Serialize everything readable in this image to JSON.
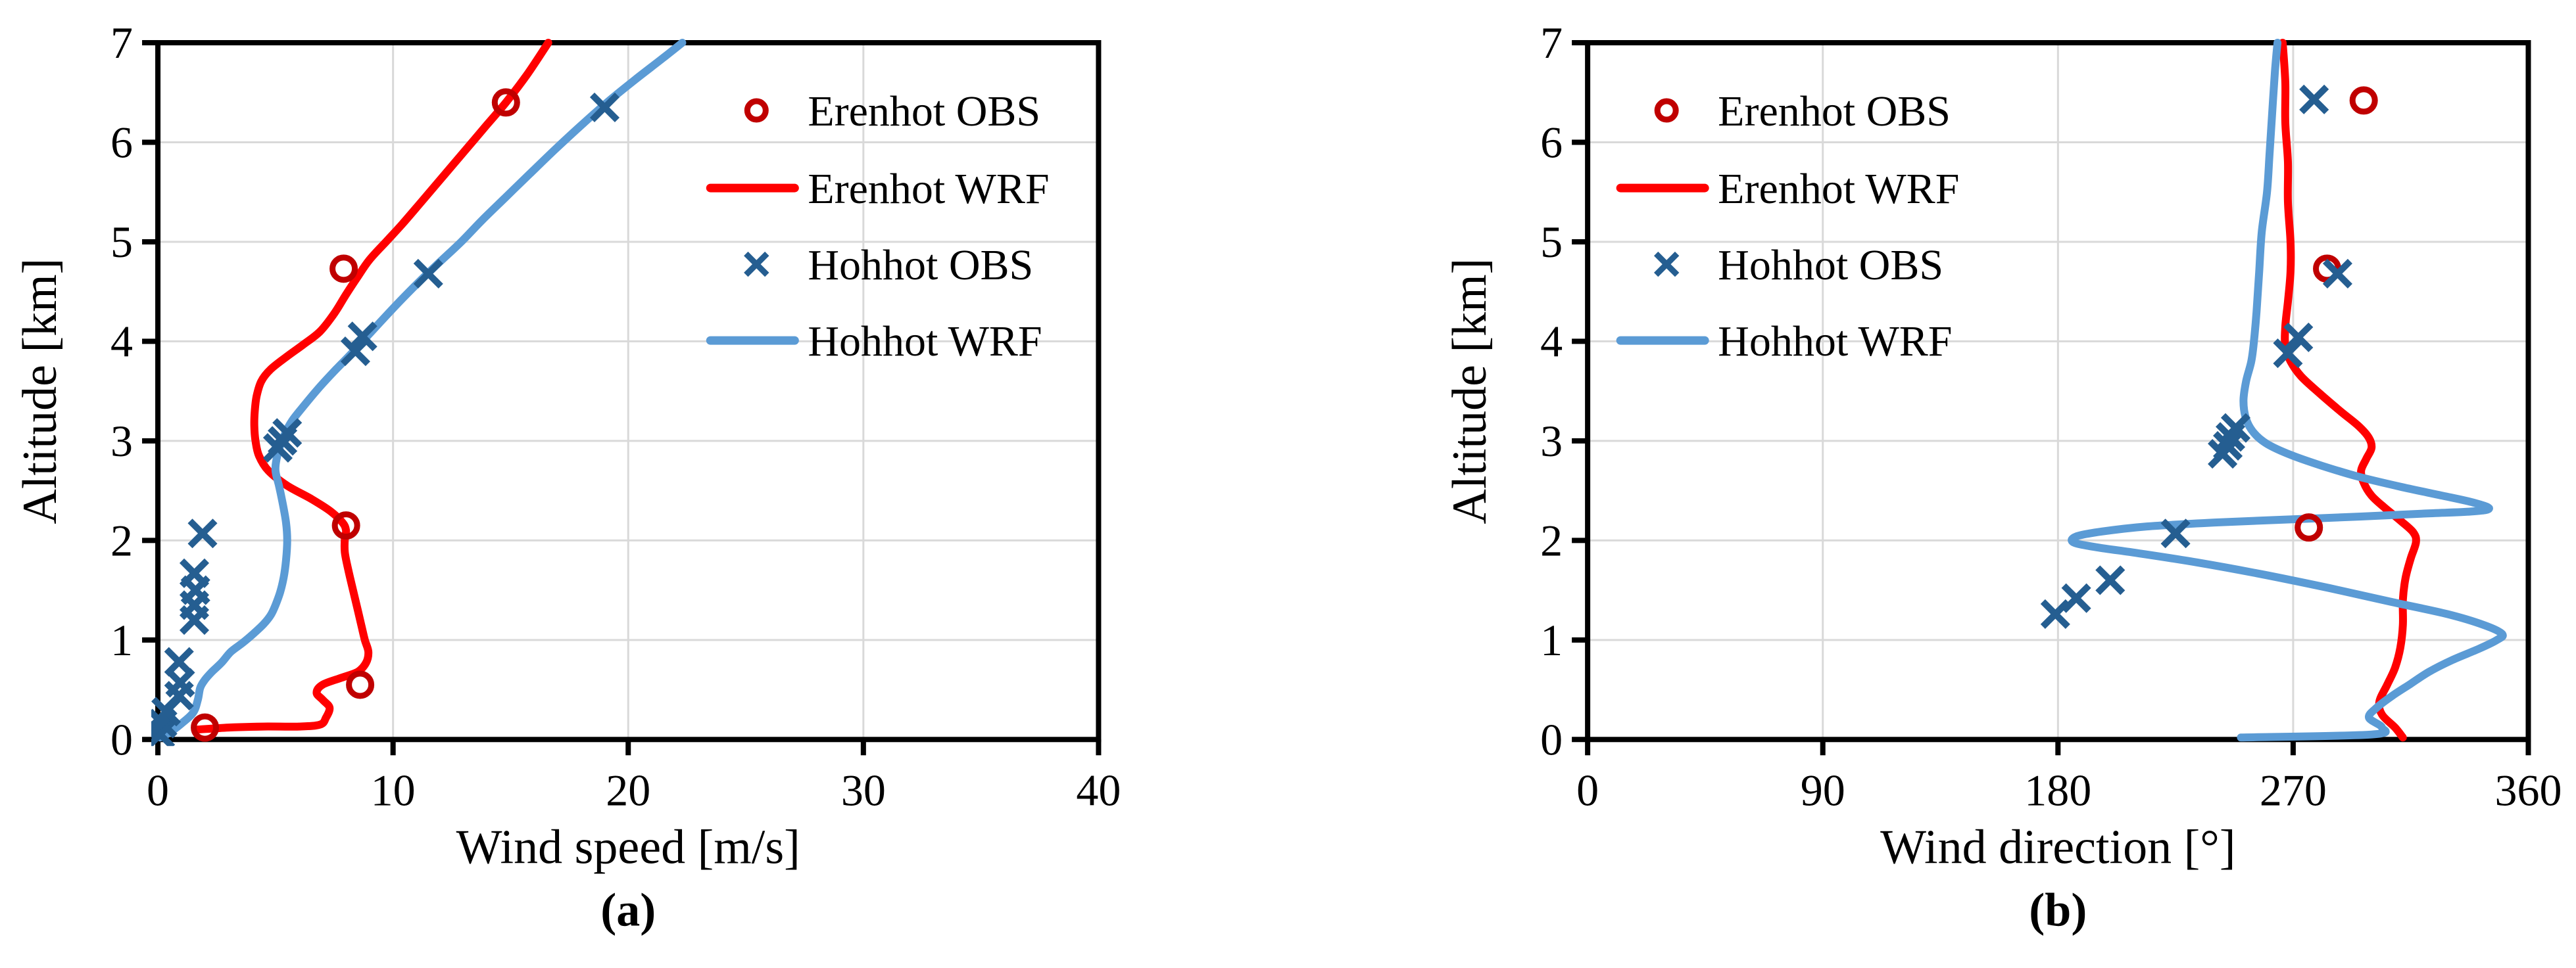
{
  "figure": {
    "colors": {
      "background": "#ffffff",
      "grid": "#d9d9d9",
      "axis": "#000000",
      "text": "#000000",
      "erenhot_obs": "#c00000",
      "erenhot_wrf": "#ff0000",
      "hohhot_obs": "#255e91",
      "hohhot_wrf": "#5b9bd5"
    },
    "legend_labels": [
      "Erenhot OBS",
      "Erenhot WRF",
      "Hohhot OBS",
      "Hohhot WRF"
    ]
  },
  "chart_data": [
    {
      "id": "a",
      "type": "line",
      "caption": "(a)",
      "xlabel": "Wind speed [m/s]",
      "ylabel": "Altitude [km]",
      "xlim": [
        0,
        40
      ],
      "ylim": [
        0,
        7
      ],
      "xticks": [
        0,
        10,
        20,
        30,
        40
      ],
      "yticks": [
        0,
        1,
        2,
        3,
        4,
        5,
        6,
        7
      ],
      "grid": true,
      "legend_position": "inside-top-right",
      "series": [
        {
          "name": "Erenhot OBS",
          "kind": "scatter",
          "marker": "open-circle",
          "color_key": "erenhot_obs",
          "points": [
            [
              2.0,
              0.12
            ],
            [
              8.6,
              0.55
            ],
            [
              8.0,
              2.15
            ],
            [
              7.9,
              4.73
            ],
            [
              14.8,
              6.4
            ]
          ]
        },
        {
          "name": "Erenhot WRF",
          "kind": "line",
          "color_key": "erenhot_wrf",
          "points": [
            [
              1.7,
              0.1
            ],
            [
              3.0,
              0.12
            ],
            [
              4.5,
              0.13
            ],
            [
              6.0,
              0.13
            ],
            [
              6.9,
              0.15
            ],
            [
              7.15,
              0.22
            ],
            [
              7.3,
              0.32
            ],
            [
              7.0,
              0.4
            ],
            [
              6.75,
              0.47
            ],
            [
              7.0,
              0.55
            ],
            [
              7.8,
              0.62
            ],
            [
              8.5,
              0.68
            ],
            [
              8.85,
              0.77
            ],
            [
              8.95,
              0.88
            ],
            [
              8.8,
              1.0
            ],
            [
              8.65,
              1.15
            ],
            [
              8.5,
              1.3
            ],
            [
              8.3,
              1.5
            ],
            [
              8.1,
              1.7
            ],
            [
              7.95,
              1.88
            ],
            [
              7.95,
              2.02
            ],
            [
              8.0,
              2.1
            ],
            [
              7.85,
              2.18
            ],
            [
              7.3,
              2.3
            ],
            [
              6.5,
              2.42
            ],
            [
              5.5,
              2.55
            ],
            [
              4.7,
              2.7
            ],
            [
              4.3,
              2.85
            ],
            [
              4.15,
              3.0
            ],
            [
              4.1,
              3.15
            ],
            [
              4.12,
              3.3
            ],
            [
              4.2,
              3.45
            ],
            [
              4.4,
              3.6
            ],
            [
              4.8,
              3.72
            ],
            [
              5.5,
              3.85
            ],
            [
              6.2,
              3.97
            ],
            [
              6.9,
              4.1
            ],
            [
              7.5,
              4.28
            ],
            [
              8.0,
              4.47
            ],
            [
              8.5,
              4.65
            ],
            [
              9.0,
              4.82
            ],
            [
              9.7,
              5.0
            ],
            [
              10.4,
              5.18
            ],
            [
              11.2,
              5.4
            ],
            [
              12.1,
              5.65
            ],
            [
              13.0,
              5.9
            ],
            [
              13.9,
              6.15
            ],
            [
              14.8,
              6.4
            ],
            [
              15.7,
              6.68
            ],
            [
              16.6,
              7.0
            ]
          ]
        },
        {
          "name": "Hohhot OBS",
          "kind": "scatter",
          "marker": "x",
          "color_key": "hohhot_obs",
          "points": [
            [
              0.1,
              0.05
            ],
            [
              0.2,
              0.16
            ],
            [
              0.35,
              0.28
            ],
            [
              0.9,
              0.44
            ],
            [
              0.95,
              0.57
            ],
            [
              0.9,
              0.78
            ],
            [
              1.55,
              1.2
            ],
            [
              1.55,
              1.35
            ],
            [
              1.6,
              1.5
            ],
            [
              1.55,
              1.67
            ],
            [
              1.9,
              2.07
            ],
            [
              5.1,
              2.93
            ],
            [
              5.3,
              3.0
            ],
            [
              5.5,
              3.08
            ],
            [
              8.4,
              3.9
            ],
            [
              8.7,
              4.05
            ],
            [
              11.5,
              4.68
            ],
            [
              19.0,
              6.35
            ]
          ]
        },
        {
          "name": "Hohhot WRF",
          "kind": "line",
          "color_key": "hohhot_wrf",
          "points": [
            [
              0.1,
              0.02
            ],
            [
              0.5,
              0.07
            ],
            [
              1.0,
              0.16
            ],
            [
              1.5,
              0.27
            ],
            [
              1.7,
              0.4
            ],
            [
              1.8,
              0.52
            ],
            [
              2.0,
              0.6
            ],
            [
              2.3,
              0.68
            ],
            [
              2.7,
              0.77
            ],
            [
              3.1,
              0.88
            ],
            [
              3.6,
              0.97
            ],
            [
              4.05,
              1.06
            ],
            [
              4.5,
              1.16
            ],
            [
              4.8,
              1.25
            ],
            [
              5.0,
              1.35
            ],
            [
              5.2,
              1.48
            ],
            [
              5.35,
              1.63
            ],
            [
              5.45,
              1.8
            ],
            [
              5.5,
              2.0
            ],
            [
              5.45,
              2.18
            ],
            [
              5.3,
              2.38
            ],
            [
              5.15,
              2.55
            ],
            [
              5.0,
              2.7
            ],
            [
              5.05,
              2.82
            ],
            [
              5.2,
              2.95
            ],
            [
              5.4,
              3.07
            ],
            [
              5.7,
              3.2
            ],
            [
              6.2,
              3.35
            ],
            [
              6.8,
              3.52
            ],
            [
              7.5,
              3.7
            ],
            [
              8.2,
              3.87
            ],
            [
              8.9,
              4.05
            ],
            [
              9.6,
              4.23
            ],
            [
              10.4,
              4.43
            ],
            [
              11.2,
              4.62
            ],
            [
              12.0,
              4.8
            ],
            [
              12.9,
              5.0
            ],
            [
              13.8,
              5.22
            ],
            [
              14.8,
              5.45
            ],
            [
              15.8,
              5.68
            ],
            [
              16.9,
              5.93
            ],
            [
              18.0,
              6.17
            ],
            [
              19.1,
              6.4
            ],
            [
              20.3,
              6.63
            ],
            [
              21.5,
              6.85
            ],
            [
              22.3,
              7.0
            ]
          ]
        }
      ]
    },
    {
      "id": "b",
      "type": "line",
      "caption": "(b)",
      "xlabel": "Wind direction [°]",
      "ylabel": "Altitude [km]",
      "xlim": [
        0,
        360
      ],
      "ylim": [
        0,
        7
      ],
      "xticks": [
        0,
        90,
        180,
        270,
        360
      ],
      "yticks": [
        0,
        1,
        2,
        3,
        4,
        5,
        6,
        7
      ],
      "grid": true,
      "legend_position": "inside-top-left",
      "series": [
        {
          "name": "Erenhot OBS",
          "kind": "scatter",
          "marker": "open-circle",
          "color_key": "erenhot_obs",
          "points": [
            [
              276,
              2.13
            ],
            [
              283,
              4.73
            ],
            [
              297,
              6.42
            ]
          ]
        },
        {
          "name": "Erenhot WRF",
          "kind": "line",
          "color_key": "erenhot_wrf",
          "points": [
            [
              312,
              0.02
            ],
            [
              309,
              0.12
            ],
            [
              304,
              0.25
            ],
            [
              303,
              0.38
            ],
            [
              306,
              0.55
            ],
            [
              309,
              0.72
            ],
            [
              311,
              0.92
            ],
            [
              312,
              1.15
            ],
            [
              312,
              1.4
            ],
            [
              313,
              1.62
            ],
            [
              315,
              1.82
            ],
            [
              317,
              1.98
            ],
            [
              316,
              2.08
            ],
            [
              311,
              2.2
            ],
            [
              305,
              2.33
            ],
            [
              300,
              2.45
            ],
            [
              297,
              2.58
            ],
            [
              296,
              2.7
            ],
            [
              298,
              2.82
            ],
            [
              300,
              2.93
            ],
            [
              299,
              3.03
            ],
            [
              295,
              3.15
            ],
            [
              288,
              3.3
            ],
            [
              280,
              3.48
            ],
            [
              273,
              3.65
            ],
            [
              269,
              3.8
            ],
            [
              267,
              3.95
            ],
            [
              267,
              4.15
            ],
            [
              268,
              4.4
            ],
            [
              269,
              4.7
            ],
            [
              269,
              5.0
            ],
            [
              268,
              5.4
            ],
            [
              268,
              5.8
            ],
            [
              267,
              6.2
            ],
            [
              267,
              6.6
            ],
            [
              266,
              7.0
            ]
          ]
        },
        {
          "name": "Hohhot OBS",
          "kind": "scatter",
          "marker": "x",
          "color_key": "hohhot_obs",
          "points": [
            [
              179,
              1.26
            ],
            [
              187,
              1.42
            ],
            [
              200,
              1.6
            ],
            [
              225,
              2.07
            ],
            [
              243,
              2.87
            ],
            [
              245,
              2.95
            ],
            [
              246,
              3.04
            ],
            [
              248,
              3.13
            ],
            [
              268,
              3.88
            ],
            [
              272,
              4.04
            ],
            [
              287,
              4.68
            ],
            [
              278,
              6.43
            ]
          ]
        },
        {
          "name": "Hohhot WRF",
          "kind": "line",
          "color_key": "hohhot_wrf",
          "points": [
            [
              250,
              0.02
            ],
            [
              300,
              0.05
            ],
            [
              304,
              0.12
            ],
            [
              299,
              0.22
            ],
            [
              302,
              0.32
            ],
            [
              308,
              0.44
            ],
            [
              315,
              0.56
            ],
            [
              322,
              0.68
            ],
            [
              331,
              0.8
            ],
            [
              341,
              0.91
            ],
            [
              348,
              1.0
            ],
            [
              350,
              1.06
            ],
            [
              343,
              1.15
            ],
            [
              329,
              1.26
            ],
            [
              308,
              1.38
            ],
            [
              284,
              1.52
            ],
            [
              258,
              1.66
            ],
            [
              233,
              1.78
            ],
            [
              211,
              1.87
            ],
            [
              195,
              1.93
            ],
            [
              186,
              1.98
            ],
            [
              187,
              2.04
            ],
            [
              197,
              2.09
            ],
            [
              214,
              2.14
            ],
            [
              240,
              2.18
            ],
            [
              268,
              2.21
            ],
            [
              296,
              2.24
            ],
            [
              320,
              2.27
            ],
            [
              338,
              2.29
            ],
            [
              345,
              2.32
            ],
            [
              339,
              2.38
            ],
            [
              327,
              2.45
            ],
            [
              311,
              2.54
            ],
            [
              295,
              2.64
            ],
            [
              281,
              2.75
            ],
            [
              269,
              2.86
            ],
            [
              260,
              2.97
            ],
            [
              255,
              3.08
            ],
            [
              252,
              3.22
            ],
            [
              251,
              3.4
            ],
            [
              252,
              3.6
            ],
            [
              254,
              3.8
            ],
            [
              255,
              4.0
            ],
            [
              256,
              4.3
            ],
            [
              257,
              4.7
            ],
            [
              258,
              5.1
            ],
            [
              260,
              5.5
            ],
            [
              261,
              5.9
            ],
            [
              262,
              6.3
            ],
            [
              263,
              6.7
            ],
            [
              264,
              7.0
            ]
          ]
        }
      ]
    }
  ]
}
